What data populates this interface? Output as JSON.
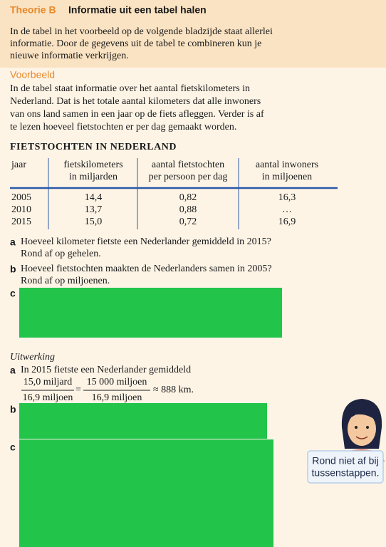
{
  "header": {
    "label": "Theorie B",
    "title": "Informatie uit een tabel halen"
  },
  "intro": [
    "In de tabel in het voorbeeld op de volgende bladzijde staat allerlei",
    "informatie. Door de gegevens uit de tabel te combineren kun je",
    "nieuwe informatie verkrijgen."
  ],
  "example": {
    "heading": "Voorbeeld",
    "lines": [
      "In de tabel staat informatie over het aantal fietskilometers in",
      "Nederland. Dat is het totale aantal kilometers dat alle inwoners",
      "van ons land samen in een jaar op de fiets afleggen. Verder is af",
      "te lezen hoeveel fietstochten er per dag gemaakt worden."
    ]
  },
  "table": {
    "caption": "FIETSTOCHTEN IN NEDERLAND",
    "headers": [
      [
        "jaar"
      ],
      [
        "fietskilometers",
        "in miljarden"
      ],
      [
        "aantal fietstochten",
        "per persoon per dag"
      ],
      [
        "aantal inwoners",
        "in miljoenen"
      ]
    ],
    "rows": [
      [
        "2005",
        "14,4",
        "0,82",
        "16,3"
      ],
      [
        "2010",
        "13,7",
        "0,88",
        "…"
      ],
      [
        "2015",
        "15,0",
        "0,72",
        "16,9"
      ]
    ]
  },
  "questions": [
    {
      "letter": "a",
      "lines": [
        "Hoeveel kilometer fietste een Nederlander gemiddeld in 2015?",
        "Rond af op gehelen."
      ]
    },
    {
      "letter": "b",
      "lines": [
        "Hoeveel fietstochten maakten de Nederlanders samen in 2005?",
        "Rond af op miljoenen."
      ]
    },
    {
      "letter": "c"
    }
  ],
  "solution": {
    "heading": "Uitwerking",
    "a": {
      "letter": "a",
      "text": "In 2015 fietste een Nederlander gemiddeld",
      "num1": "15,0 miljard",
      "den1": "16,9 miljoen",
      "eq": "=",
      "num2": "15 000 miljoen",
      "den2": "16,9 miljoen",
      "result": "≈ 888 km."
    },
    "b": {
      "letter": "b"
    },
    "c": {
      "letter": "c"
    }
  },
  "tip": [
    "Rond niet af bij",
    "tussenstappen."
  ]
}
